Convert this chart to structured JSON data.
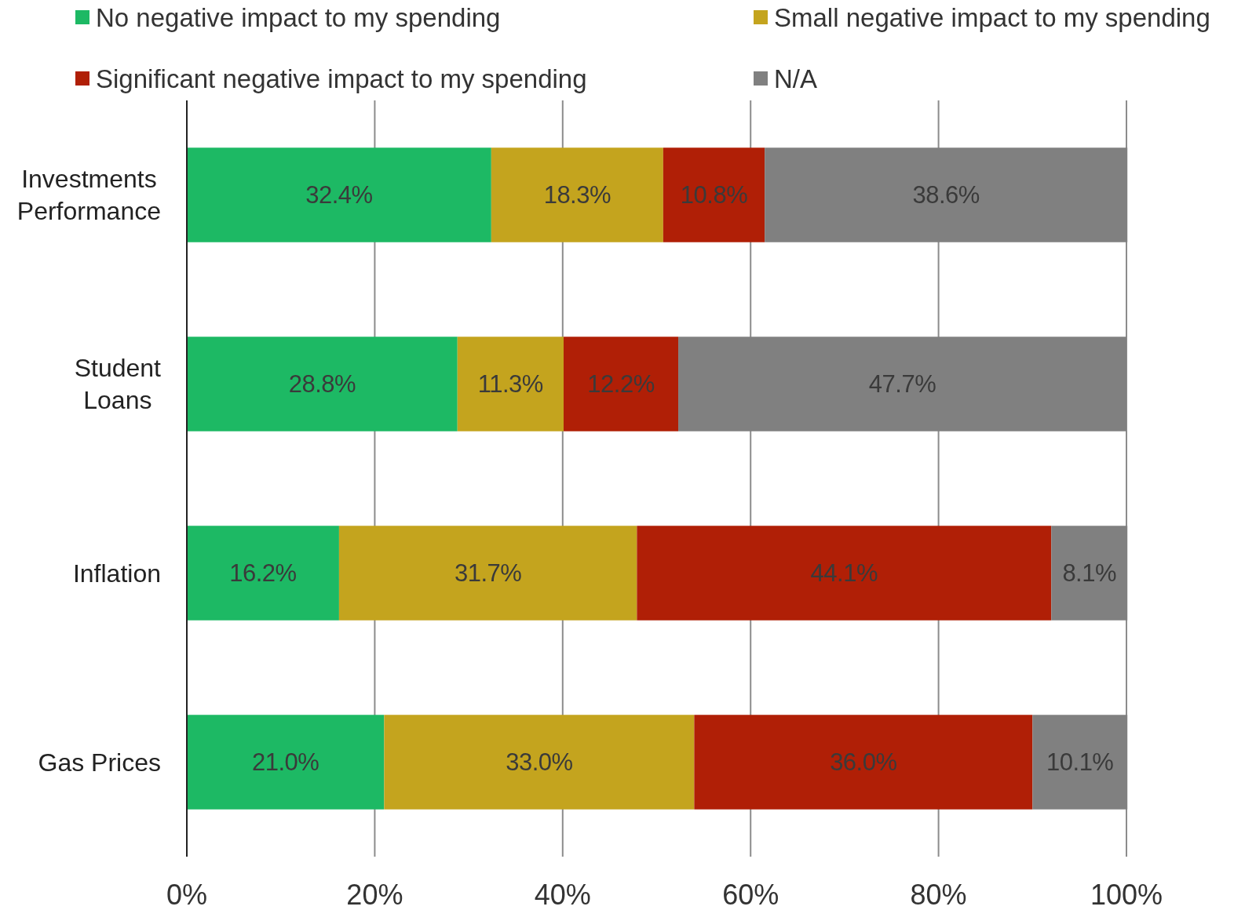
{
  "chart_data": {
    "type": "bar",
    "orientation": "horizontal",
    "stacked": true,
    "categories": [
      "Investments Performance",
      "Student Loans",
      "Inflation",
      "Gas Prices"
    ],
    "series": [
      {
        "name": "No negative impact to my spending",
        "color": "#1db964",
        "values": [
          32.4,
          28.8,
          16.2,
          21.0
        ],
        "value_labels": [
          "32.4%",
          "28.8%",
          "16.2%",
          "21.0%"
        ]
      },
      {
        "name": "Small negative impact to my spending",
        "color": "#c4a41e",
        "values": [
          18.3,
          11.3,
          31.7,
          33.0
        ],
        "value_labels": [
          "18.3%",
          "11.3%",
          "31.7%",
          "33.0%"
        ]
      },
      {
        "name": "Significant negative impact to my spending",
        "color": "#b01f06",
        "values": [
          10.8,
          12.2,
          44.1,
          36.0
        ],
        "value_labels": [
          "10.8%",
          "12.2%",
          "44.1%",
          "36.0%"
        ]
      },
      {
        "name": "N/A",
        "color": "#808080",
        "values": [
          38.6,
          47.7,
          8.1,
          10.1
        ],
        "value_labels": [
          "38.6%",
          "47.7%",
          "8.1%",
          "10.1%"
        ]
      }
    ],
    "xlim": [
      0,
      100
    ],
    "xticks": [
      {
        "value": 0,
        "label": "0%"
      },
      {
        "value": 20,
        "label": "20%"
      },
      {
        "value": 40,
        "label": "40%"
      },
      {
        "value": 60,
        "label": "60%"
      },
      {
        "value": 80,
        "label": "80%"
      },
      {
        "value": 100,
        "label": "100%"
      }
    ],
    "grid": "x",
    "legend": "top"
  }
}
